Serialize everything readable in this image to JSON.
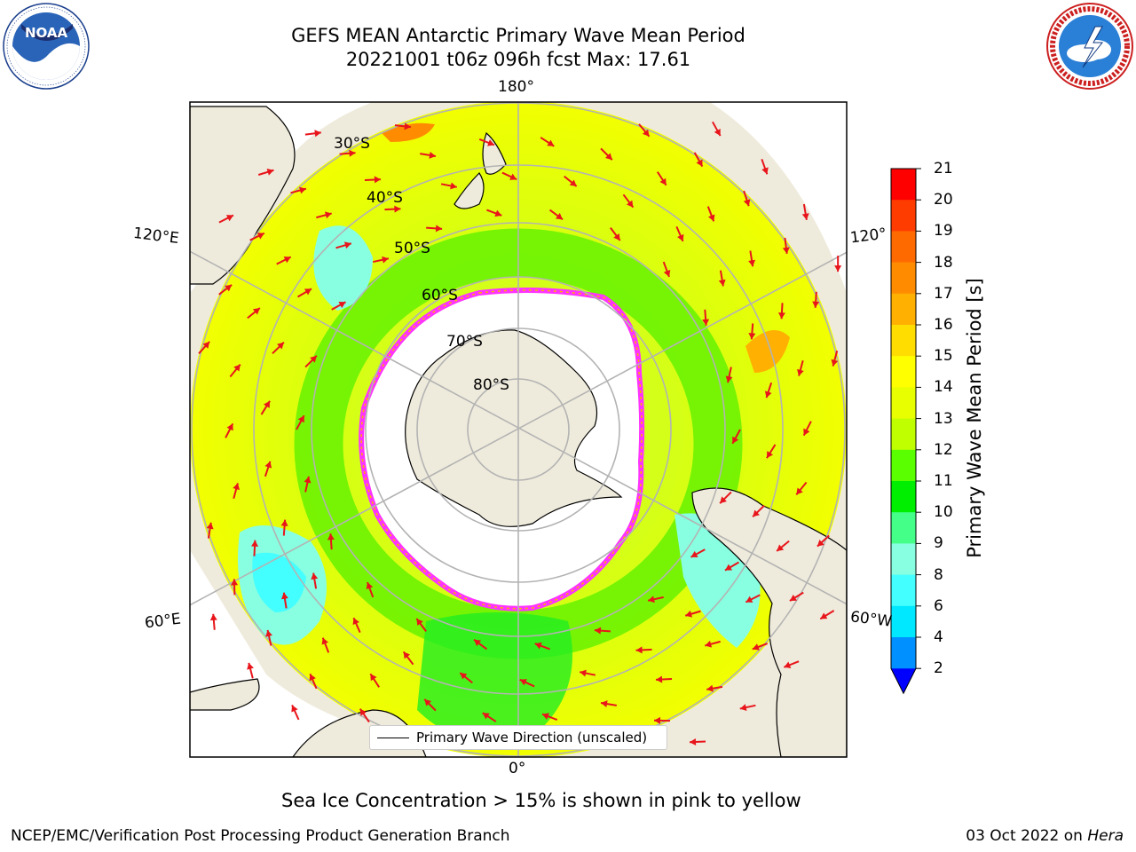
{
  "title": {
    "line1": "GEFS MEAN Antarctic Primary Wave Mean Period",
    "line2": "20221001 t06z 096h fcst   Max: 17.61"
  },
  "logos": {
    "noaa": {
      "text": "NOAA",
      "ring_text": "NATIONAL OCEANIC AND ATMOSPHERIC ADMINISTRATION · U.S. DEPARTMENT OF COMMERCE"
    },
    "nws": {
      "ring_text": "NATIONAL WEATHER SERVICE"
    }
  },
  "map": {
    "projection": "South Polar Stereographic",
    "longitude_labels": {
      "top": "180°",
      "bottom": "0°",
      "left_upper": "120°E",
      "left_lower": "60°E",
      "right_upper": "120°",
      "right_lower": "60°W"
    },
    "latitude_labels": [
      "30°S",
      "40°S",
      "50°S",
      "60°S",
      "70°S",
      "80°S"
    ],
    "colors": {
      "land": "#efebdc",
      "ice_free_ocean": "#ffffff",
      "arrows": "#e8151b",
      "grid": "#b3b3b3",
      "sea_ice_edge": "#ff33ff"
    }
  },
  "colorbar": {
    "label": "Primary Wave Mean Period [s]",
    "ticks": [
      "21",
      "20",
      "19",
      "18",
      "17",
      "16",
      "15",
      "14",
      "13",
      "12",
      "11",
      "10",
      "9",
      "8",
      "6",
      "4",
      "2"
    ],
    "colors": [
      "#ff0000",
      "#ff3c00",
      "#ff6a00",
      "#ff8c00",
      "#ffb000",
      "#ffdd00",
      "#ffff00",
      "#e8ff00",
      "#c0ff00",
      "#5aff00",
      "#00ee00",
      "#44ff88",
      "#88ffe0",
      "#44ffff",
      "#00e8ff",
      "#0090ff"
    ],
    "underflow_color": "#0000ff"
  },
  "legend": {
    "label": "Primary Wave Direction (unscaled)"
  },
  "note": "Sea Ice Concentration > 15% is shown in pink to yellow",
  "footer": {
    "left": "NCEP/EMC/Verification Post Processing Product Generation Branch",
    "right_date": "03 Oct 2022 on",
    "right_host": "Hera"
  }
}
